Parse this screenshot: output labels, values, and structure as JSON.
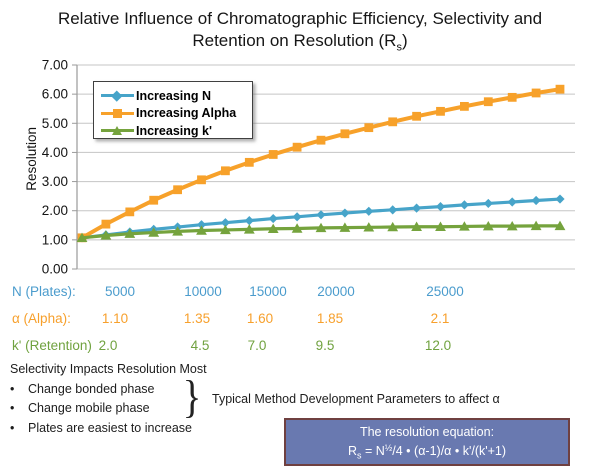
{
  "title": {
    "line1": "Relative Influence of Chromatographic Efficiency, Selectivity and",
    "line2_pre": "Retention on Resolution (R",
    "line2_sub": "s",
    "line2_post": ")"
  },
  "chart_data": {
    "type": "line",
    "title": "",
    "xlabel": "",
    "ylabel": "Resolution",
    "ylim": [
      0,
      7
    ],
    "grid": true,
    "legend_position": "top-left-inside",
    "y_ticks": [
      "0.00",
      "1.00",
      "2.00",
      "3.00",
      "4.00",
      "5.00",
      "6.00",
      "7.00"
    ],
    "series": [
      {
        "name": "Increasing N",
        "color": "#47A4C9",
        "marker": "diamond",
        "x_param": "N (Plates)",
        "x_values": [
          5000,
          6000,
          7000,
          8000,
          9000,
          10000,
          11000,
          12000,
          13000,
          14000,
          15000,
          16000,
          17000,
          18000,
          19000,
          20000,
          21000,
          22000,
          23000,
          24000,
          25000
        ],
        "values": [
          1.07,
          1.17,
          1.27,
          1.36,
          1.44,
          1.52,
          1.59,
          1.66,
          1.73,
          1.79,
          1.86,
          1.92,
          1.98,
          2.03,
          2.09,
          2.14,
          2.2,
          2.25,
          2.3,
          2.35,
          2.4
        ]
      },
      {
        "name": "Increasing Alpha",
        "color": "#F7A12A",
        "marker": "square",
        "x_param": "α (Alpha)",
        "x_values": [
          1.1,
          1.15,
          1.2,
          1.25,
          1.3,
          1.35,
          1.4,
          1.45,
          1.5,
          1.55,
          1.6,
          1.65,
          1.7,
          1.75,
          1.8,
          1.85,
          1.9,
          1.95,
          2.0,
          2.05,
          2.1
        ],
        "values": [
          1.07,
          1.54,
          1.96,
          2.36,
          2.72,
          3.06,
          3.37,
          3.66,
          3.93,
          4.18,
          4.42,
          4.64,
          4.85,
          5.05,
          5.24,
          5.41,
          5.58,
          5.74,
          5.89,
          6.04,
          6.17
        ]
      },
      {
        "name": "Increasing k'",
        "color": "#75A33D",
        "marker": "triangle",
        "x_param": "k' (Retention)",
        "x_values": [
          2.0,
          2.5,
          3.0,
          3.5,
          4.0,
          4.5,
          5.0,
          5.5,
          6.0,
          6.5,
          7.0,
          7.5,
          8.0,
          8.5,
          9.0,
          9.5,
          10.0,
          10.5,
          11.0,
          11.5,
          12.0
        ],
        "values": [
          1.07,
          1.15,
          1.21,
          1.25,
          1.29,
          1.32,
          1.34,
          1.36,
          1.38,
          1.39,
          1.41,
          1.42,
          1.43,
          1.44,
          1.45,
          1.45,
          1.46,
          1.47,
          1.47,
          1.48,
          1.48
        ]
      }
    ]
  },
  "param_rows": [
    {
      "label": "N (Plates):",
      "color": "#4B9CCD",
      "values": [
        "5000",
        "10000",
        "15000",
        "20000",
        "25000"
      ]
    },
    {
      "label": "α (Alpha):",
      "color": "#F7A02C",
      "values": [
        "1.10",
        "1.35",
        "1.60",
        "1.85",
        "2.1"
      ]
    },
    {
      "label": "k' (Retention)",
      "color": "#70A23F",
      "values": [
        "2.0",
        "4.5",
        "7.0",
        "9.5",
        "12.0"
      ]
    }
  ],
  "notes": {
    "heading": "Selectivity Impacts Resolution Most",
    "bullet_char": "•",
    "bullets": [
      "Change bonded phase",
      "Change mobile phase",
      "Plates are easiest to increase"
    ],
    "brace": "}",
    "brace_note": "Typical Method Development Parameters to affect α"
  },
  "equation_box": {
    "bg_color": "#6979B0",
    "border_color": "#6F4040",
    "title": "The resolution equation:",
    "r": "R",
    "r_sub": "s",
    "mid": " = N",
    "sup": "½",
    "tail": "/4 • (α-1)/α • k'/(k'+1)"
  }
}
